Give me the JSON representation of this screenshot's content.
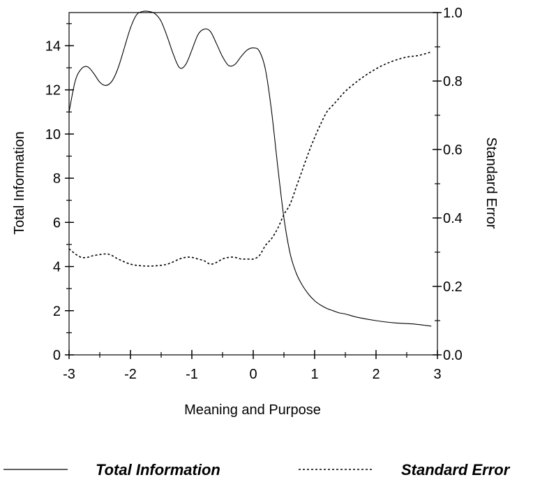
{
  "chart_data": {
    "type": "line",
    "xlabel": "Meaning and Purpose",
    "ylabel": "Total Information",
    "y2label": "Standard Error",
    "xlim": [
      -3,
      3
    ],
    "ylim": [
      0,
      15.5
    ],
    "y2lim": [
      0,
      1.0
    ],
    "x_ticks": [
      -3,
      -2,
      -1,
      0,
      1,
      2,
      3
    ],
    "x_tick_labels": [
      "-3",
      "-2",
      "-1",
      "0",
      "1",
      "2",
      "3"
    ],
    "y_ticks": [
      0,
      2,
      4,
      6,
      8,
      10,
      12,
      14
    ],
    "y_tick_labels": [
      "0",
      "2",
      "4",
      "6",
      "8",
      "10",
      "12",
      "14"
    ],
    "y2_ticks": [
      0,
      0.2,
      0.4,
      0.6,
      0.8,
      1.0
    ],
    "y2_tick_labels": [
      "0.0",
      "0.2",
      "0.4",
      "0.6",
      "0.8",
      "1.0"
    ],
    "grid": false,
    "legend_position": "bottom",
    "series": [
      {
        "name": "Total Information",
        "axis": "left",
        "style": "solid",
        "x": [
          -3.0,
          -2.9,
          -2.8,
          -2.7,
          -2.6,
          -2.5,
          -2.4,
          -2.3,
          -2.2,
          -2.1,
          -2.0,
          -1.9,
          -1.8,
          -1.7,
          -1.6,
          -1.5,
          -1.4,
          -1.3,
          -1.2,
          -1.1,
          -1.0,
          -0.9,
          -0.8,
          -0.7,
          -0.6,
          -0.5,
          -0.4,
          -0.3,
          -0.2,
          -0.1,
          0.0,
          0.1,
          0.2,
          0.3,
          0.4,
          0.5,
          0.6,
          0.7,
          0.8,
          0.9,
          1.0,
          1.1,
          1.2,
          1.3,
          1.4,
          1.5,
          1.7,
          2.0,
          2.3,
          2.6,
          2.9
        ],
        "values": [
          11.0,
          12.4,
          12.95,
          13.05,
          12.75,
          12.35,
          12.2,
          12.4,
          13.0,
          13.9,
          14.8,
          15.4,
          15.55,
          15.55,
          15.45,
          15.1,
          14.4,
          13.6,
          13.0,
          13.15,
          13.8,
          14.5,
          14.75,
          14.65,
          14.1,
          13.5,
          13.1,
          13.15,
          13.5,
          13.8,
          13.9,
          13.75,
          12.9,
          11.0,
          8.5,
          6.2,
          4.6,
          3.7,
          3.15,
          2.75,
          2.45,
          2.25,
          2.1,
          2.0,
          1.9,
          1.85,
          1.7,
          1.55,
          1.45,
          1.4,
          1.3
        ]
      },
      {
        "name": "Standard Error",
        "axis": "right",
        "style": "dashed",
        "x": [
          -3.0,
          -2.9,
          -2.8,
          -2.7,
          -2.6,
          -2.4,
          -2.3,
          -2.2,
          -2.0,
          -1.8,
          -1.6,
          -1.4,
          -1.2,
          -1.1,
          -1.0,
          -0.9,
          -0.8,
          -0.7,
          -0.6,
          -0.5,
          -0.4,
          -0.3,
          -0.2,
          -0.1,
          0.0,
          0.1,
          0.2,
          0.3,
          0.4,
          0.5,
          0.6,
          0.7,
          0.8,
          0.9,
          1.0,
          1.1,
          1.2,
          1.3,
          1.4,
          1.5,
          1.7,
          1.9,
          2.1,
          2.3,
          2.5,
          2.7,
          2.9
        ],
        "values": [
          0.31,
          0.295,
          0.285,
          0.285,
          0.29,
          0.295,
          0.29,
          0.28,
          0.265,
          0.26,
          0.26,
          0.265,
          0.28,
          0.285,
          0.285,
          0.28,
          0.275,
          0.265,
          0.27,
          0.28,
          0.285,
          0.285,
          0.28,
          0.28,
          0.28,
          0.29,
          0.32,
          0.34,
          0.37,
          0.41,
          0.44,
          0.49,
          0.54,
          0.59,
          0.635,
          0.675,
          0.71,
          0.73,
          0.75,
          0.77,
          0.8,
          0.825,
          0.845,
          0.86,
          0.87,
          0.875,
          0.885
        ]
      }
    ]
  }
}
